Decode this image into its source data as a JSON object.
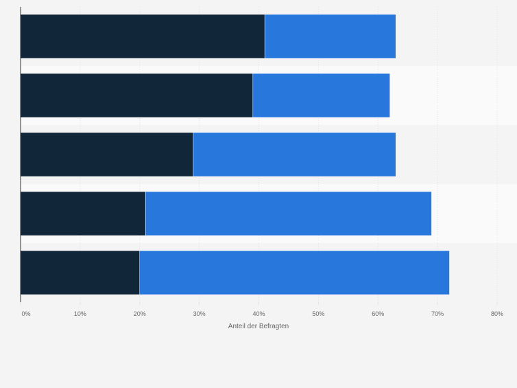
{
  "chart_data": {
    "type": "bar",
    "orientation": "horizontal",
    "stacked": true,
    "categories": [
      "",
      "",
      "",
      "",
      ""
    ],
    "series": [
      {
        "color": "#12263a",
        "values": [
          41,
          39,
          29,
          21,
          20
        ]
      },
      {
        "color": "#2877dc",
        "values": [
          22,
          23,
          34,
          48,
          52
        ]
      }
    ],
    "xlabel": "Anteil der Befragten",
    "ylabel": "",
    "xlim": [
      0,
      80
    ],
    "x_ticks": [
      0,
      10,
      20,
      30,
      40,
      50,
      60,
      70,
      80
    ],
    "x_tick_labels": [
      "0%",
      "10%",
      "20%",
      "30%",
      "40%",
      "50%",
      "60%",
      "70%",
      "80%"
    ],
    "grid": true,
    "legend": "none",
    "colors": {
      "background": "#f4f4f4",
      "row_band_alt": "#fafafa",
      "gridline": "#e2e2e2",
      "axis": "#333333",
      "text": "#666666"
    }
  }
}
